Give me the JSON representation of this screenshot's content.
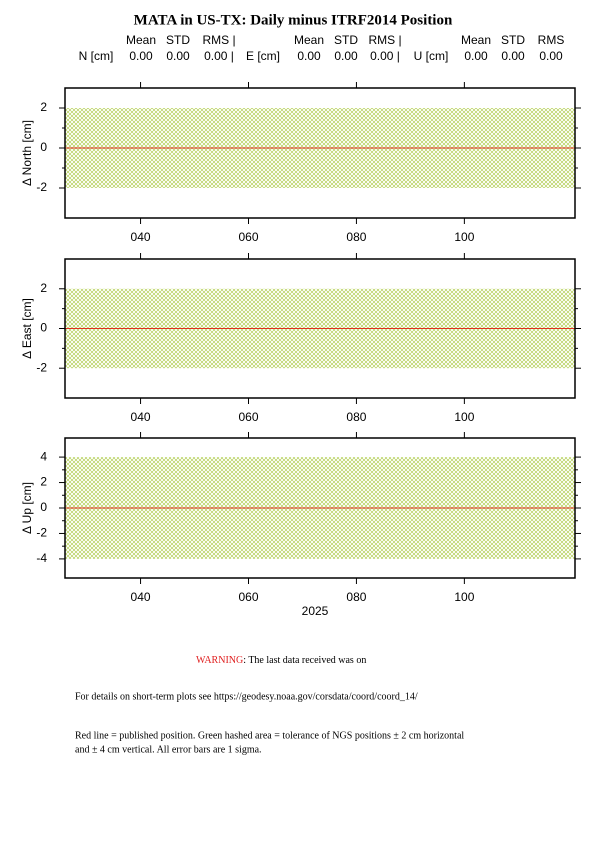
{
  "title": "MATA in US-TX: Daily minus ITRF2014 Position",
  "stats": [
    {
      "component": "N [cm]",
      "headers": [
        "Mean",
        "STD",
        "RMS |"
      ],
      "values": [
        "0.00",
        "0.00",
        "0.00 |"
      ]
    },
    {
      "component": "E [cm]",
      "headers": [
        "Mean",
        "STD",
        "RMS |"
      ],
      "values": [
        "0.00",
        "0.00",
        "0.00 |"
      ]
    },
    {
      "component": "U [cm]",
      "headers": [
        "Mean",
        "STD",
        "RMS"
      ],
      "values": [
        "0.00",
        "0.00",
        "0.00"
      ]
    }
  ],
  "chart_data": [
    {
      "type": "tolerance",
      "ylabel": "Δ North  [cm]",
      "ylim": [
        -3.5,
        3
      ],
      "yticks": [
        -2,
        0,
        2
      ],
      "xlim": [
        26,
        120.5
      ],
      "xticks": [
        {
          "value": 40,
          "label": "040"
        },
        {
          "value": 60,
          "label": "060"
        },
        {
          "value": 80,
          "label": "080"
        },
        {
          "value": 100,
          "label": "100"
        }
      ],
      "band": [
        -2,
        2
      ],
      "band_color": "#a8c83c",
      "line": 0,
      "line_color": "#e03020"
    },
    {
      "type": "tolerance",
      "ylabel": "Δ East  [cm]",
      "ylim": [
        -3.5,
        3.5
      ],
      "yticks": [
        -2,
        0,
        2
      ],
      "xlim": [
        26,
        120.5
      ],
      "xticks": [
        {
          "value": 40,
          "label": "040"
        },
        {
          "value": 60,
          "label": "060"
        },
        {
          "value": 80,
          "label": "080"
        },
        {
          "value": 100,
          "label": "100"
        }
      ],
      "band": [
        -2,
        2
      ],
      "band_color": "#a8c83c",
      "line": 0,
      "line_color": "#e03020"
    },
    {
      "type": "tolerance",
      "ylabel": "Δ Up  [cm]",
      "ylim": [
        -5.5,
        5.5
      ],
      "yticks": [
        -4,
        -2,
        0,
        2,
        4
      ],
      "xlim": [
        26,
        120.5
      ],
      "xticks": [
        {
          "value": 40,
          "label": "040"
        },
        {
          "value": 60,
          "label": "060"
        },
        {
          "value": 80,
          "label": "080"
        },
        {
          "value": 100,
          "label": "100"
        }
      ],
      "xlabel": "2025",
      "band": [
        -4,
        4
      ],
      "band_color": "#a8c83c",
      "line": 0,
      "line_color": "#e03020"
    }
  ],
  "footer": {
    "warning_label": "WARNING",
    "warning_text": ": The last data received was on",
    "details": "For details on short-term plots see https://geodesy.noaa.gov/corsdata/coord/coord_14/",
    "note_line1": "Red line = published position.  Green hashed area = tolerance of NGS positions ± 2 cm horizontal",
    "note_line2": "and ± 4 cm vertical.  All error bars are 1 sigma."
  }
}
